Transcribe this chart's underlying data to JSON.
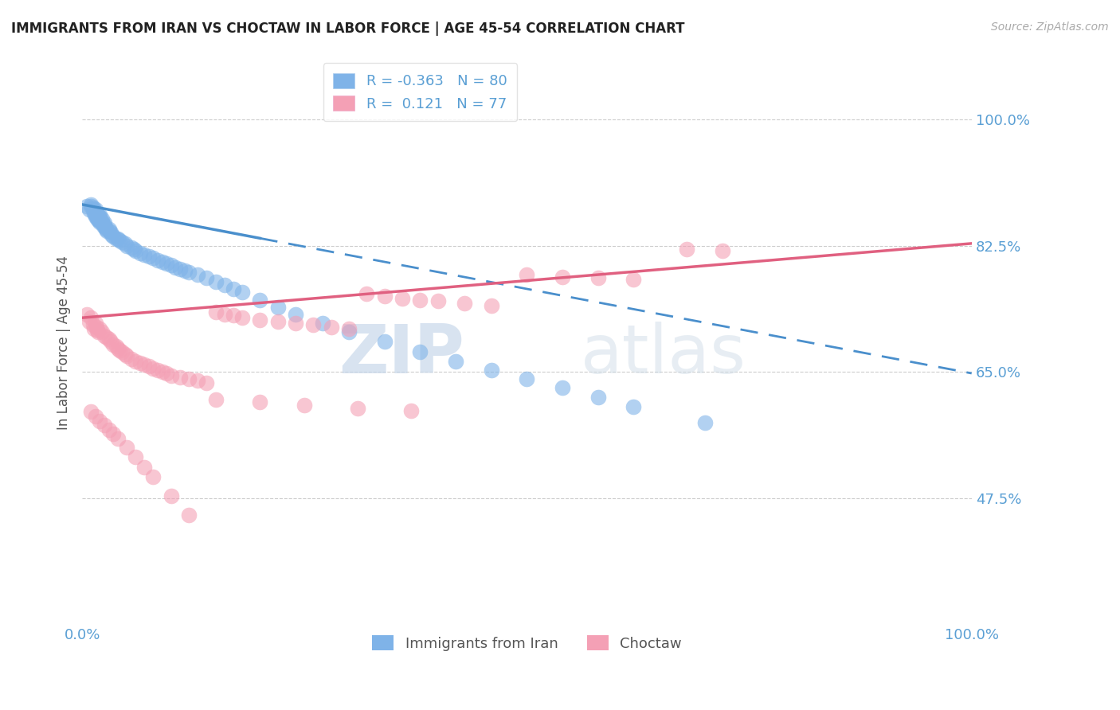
{
  "title": "IMMIGRANTS FROM IRAN VS CHOCTAW IN LABOR FORCE | AGE 45-54 CORRELATION CHART",
  "source": "Source: ZipAtlas.com",
  "ylabel": "In Labor Force | Age 45-54",
  "y_tick_labels": [
    "47.5%",
    "65.0%",
    "82.5%",
    "100.0%"
  ],
  "y_tick_values": [
    0.475,
    0.65,
    0.825,
    1.0
  ],
  "xlim": [
    0.0,
    1.0
  ],
  "ylim": [
    0.3,
    1.08
  ],
  "iran_color": "#7fb3e8",
  "choctaw_color": "#f4a0b5",
  "iran_R": -0.363,
  "iran_N": 80,
  "choctaw_R": 0.121,
  "choctaw_N": 77,
  "iran_line_color": "#4a8fcc",
  "choctaw_line_color": "#e06080",
  "iran_line_solid_end": 0.2,
  "legend_label_iran": "Immigrants from Iran",
  "legend_label_choctaw": "Choctaw",
  "watermark_zip": "ZIP",
  "watermark_atlas": "atlas",
  "background_color": "#ffffff",
  "iran_x": [
    0.005,
    0.008,
    0.01,
    0.01,
    0.012,
    0.012,
    0.013,
    0.013,
    0.015,
    0.015,
    0.015,
    0.015,
    0.016,
    0.016,
    0.017,
    0.017,
    0.018,
    0.018,
    0.018,
    0.019,
    0.019,
    0.02,
    0.02,
    0.02,
    0.02,
    0.022,
    0.022,
    0.023,
    0.024,
    0.025,
    0.025,
    0.026,
    0.027,
    0.028,
    0.03,
    0.03,
    0.032,
    0.033,
    0.035,
    0.038,
    0.04,
    0.042,
    0.045,
    0.048,
    0.05,
    0.055,
    0.058,
    0.06,
    0.065,
    0.07,
    0.075,
    0.08,
    0.085,
    0.09,
    0.095,
    0.1,
    0.105,
    0.11,
    0.115,
    0.12,
    0.13,
    0.14,
    0.15,
    0.16,
    0.17,
    0.18,
    0.2,
    0.22,
    0.24,
    0.27,
    0.3,
    0.34,
    0.38,
    0.42,
    0.46,
    0.5,
    0.54,
    0.58,
    0.62,
    0.7
  ],
  "iran_y": [
    0.88,
    0.875,
    0.88,
    0.882,
    0.878,
    0.875,
    0.873,
    0.87,
    0.875,
    0.872,
    0.868,
    0.865,
    0.87,
    0.868,
    0.865,
    0.862,
    0.868,
    0.865,
    0.862,
    0.86,
    0.865,
    0.868,
    0.865,
    0.86,
    0.858,
    0.862,
    0.858,
    0.855,
    0.852,
    0.856,
    0.853,
    0.85,
    0.848,
    0.845,
    0.848,
    0.845,
    0.843,
    0.84,
    0.838,
    0.835,
    0.835,
    0.832,
    0.83,
    0.828,
    0.825,
    0.822,
    0.82,
    0.818,
    0.815,
    0.812,
    0.81,
    0.808,
    0.805,
    0.802,
    0.8,
    0.798,
    0.795,
    0.793,
    0.79,
    0.788,
    0.785,
    0.78,
    0.775,
    0.77,
    0.765,
    0.76,
    0.75,
    0.74,
    0.73,
    0.718,
    0.705,
    0.692,
    0.678,
    0.665,
    0.652,
    0.64,
    0.628,
    0.615,
    0.602,
    0.58
  ],
  "choctaw_x": [
    0.005,
    0.008,
    0.01,
    0.012,
    0.013,
    0.015,
    0.016,
    0.017,
    0.018,
    0.02,
    0.022,
    0.025,
    0.028,
    0.03,
    0.032,
    0.035,
    0.038,
    0.04,
    0.042,
    0.045,
    0.048,
    0.05,
    0.055,
    0.06,
    0.065,
    0.07,
    0.075,
    0.08,
    0.085,
    0.09,
    0.095,
    0.1,
    0.11,
    0.12,
    0.13,
    0.14,
    0.15,
    0.16,
    0.17,
    0.18,
    0.2,
    0.22,
    0.24,
    0.26,
    0.28,
    0.3,
    0.32,
    0.34,
    0.36,
    0.38,
    0.4,
    0.43,
    0.46,
    0.5,
    0.54,
    0.58,
    0.62,
    0.68,
    0.72,
    0.01,
    0.015,
    0.02,
    0.025,
    0.03,
    0.035,
    0.04,
    0.05,
    0.06,
    0.07,
    0.08,
    0.1,
    0.12,
    0.15,
    0.2,
    0.25,
    0.31,
    0.37
  ],
  "choctaw_y": [
    0.73,
    0.72,
    0.725,
    0.715,
    0.71,
    0.718,
    0.712,
    0.708,
    0.705,
    0.71,
    0.705,
    0.7,
    0.698,
    0.695,
    0.692,
    0.688,
    0.685,
    0.682,
    0.68,
    0.678,
    0.675,
    0.672,
    0.668,
    0.665,
    0.662,
    0.66,
    0.658,
    0.655,
    0.652,
    0.65,
    0.648,
    0.645,
    0.642,
    0.64,
    0.638,
    0.635,
    0.733,
    0.73,
    0.728,
    0.725,
    0.722,
    0.72,
    0.718,
    0.715,
    0.712,
    0.71,
    0.758,
    0.755,
    0.752,
    0.75,
    0.748,
    0.745,
    0.742,
    0.785,
    0.782,
    0.78,
    0.778,
    0.82,
    0.818,
    0.595,
    0.588,
    0.582,
    0.576,
    0.57,
    0.564,
    0.558,
    0.545,
    0.532,
    0.518,
    0.505,
    0.478,
    0.452,
    0.612,
    0.608,
    0.604,
    0.6,
    0.596
  ]
}
